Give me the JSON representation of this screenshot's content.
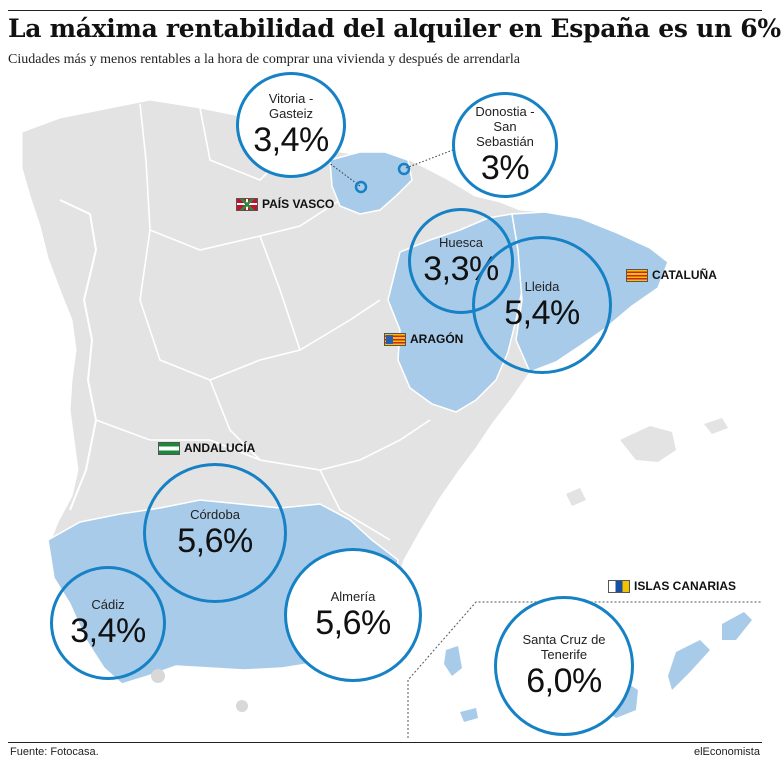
{
  "header": {
    "title": "La máxima rentabilidad del alquiler en España es un 6%",
    "subtitle": "Ciudades más y menos rentables a la hora de comprar una vivienda y después de arrendarla"
  },
  "regions": {
    "pais_vasco": "PAÍS VASCO",
    "cataluna": "CATALUÑA",
    "aragon": "ARAGÓN",
    "andalucia": "ANDALUCÍA",
    "canarias": "ISLAS CANARIAS"
  },
  "cities": [
    {
      "id": "vitoria",
      "name": "Vitoria - Gasteiz",
      "value": "3,4%"
    },
    {
      "id": "donostia",
      "name": "Donostia - San Sebastián",
      "value": "3%"
    },
    {
      "id": "huesca",
      "name": "Huesca",
      "value": "3,3%"
    },
    {
      "id": "lleida",
      "name": "Lleida",
      "value": "5,4%"
    },
    {
      "id": "cordoba",
      "name": "Córdoba",
      "value": "5,6%"
    },
    {
      "id": "cadiz",
      "name": "Cádiz",
      "value": "3,4%"
    },
    {
      "id": "almeria",
      "name": "Almería",
      "value": "5,6%"
    },
    {
      "id": "tenerife",
      "name": "Santa Cruz de Tenerife",
      "value": "6,0%"
    }
  ],
  "colors": {
    "land": "#e3e3e3",
    "highlight": "#a8cbe9",
    "border": "#ffffff",
    "circle": "#1681c4"
  },
  "footer": {
    "source": "Fuente: Fotocasa.",
    "brand": "elEconomista"
  }
}
